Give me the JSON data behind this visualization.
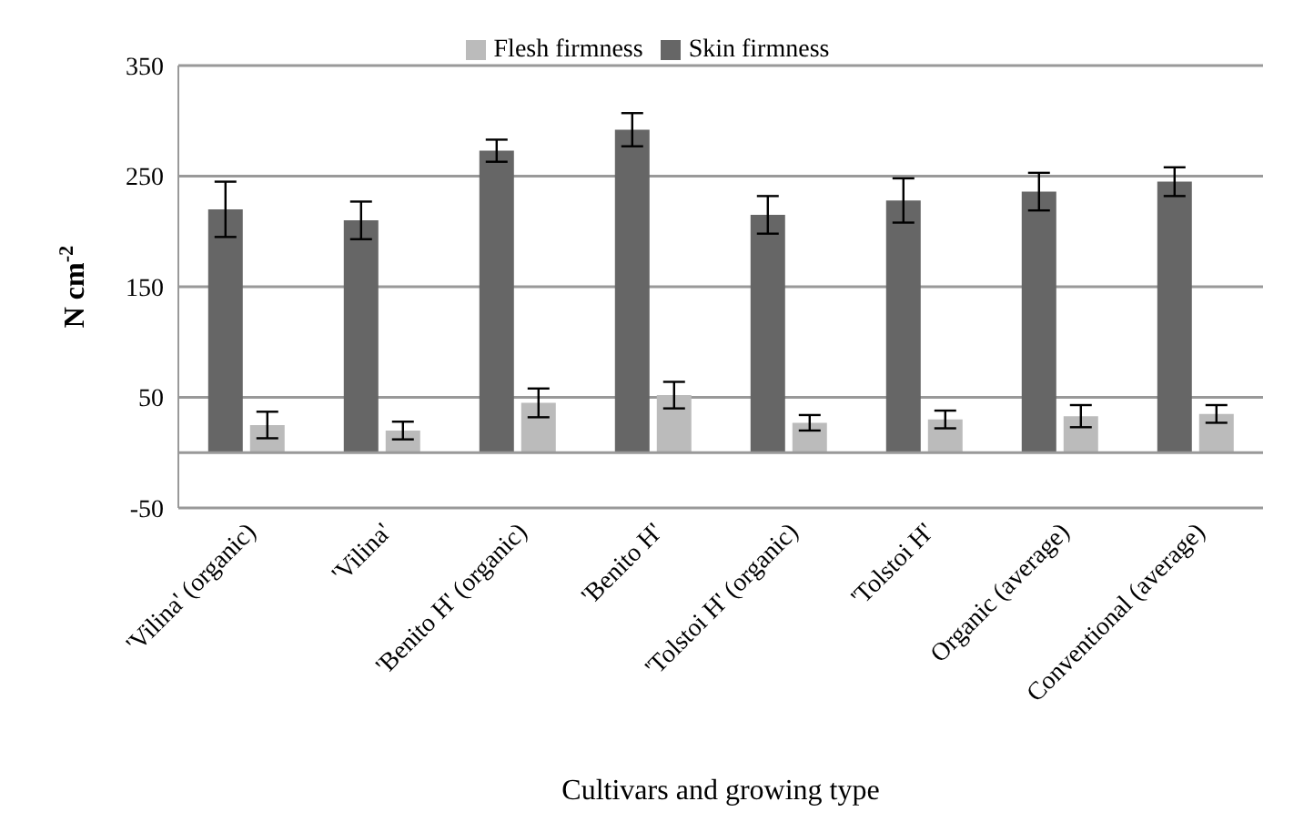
{
  "chart_data": {
    "type": "bar",
    "xlabel": "Cultivars and growing type",
    "ylabel": "N cm$^{-2}$",
    "categories": [
      "'Vilina' (organic)",
      "'Vilina'",
      "'Benito H' (organic)",
      "'Benito H'",
      "'Tolstoi H' (organic)",
      "'Tolstoi H'",
      "Organic (average)",
      "Conventional (average)"
    ],
    "series": [
      {
        "name": "Skin firmness",
        "color": "#666666",
        "values": [
          220,
          210,
          273,
          292,
          215,
          228,
          236,
          245
        ],
        "errors": [
          25,
          17,
          10,
          15,
          17,
          20,
          17,
          13
        ]
      },
      {
        "name": "Flesh firmness",
        "color": "#bbbbbb",
        "values": [
          25,
          20,
          45,
          52,
          27,
          30,
          33,
          35
        ],
        "errors": [
          12,
          8,
          13,
          12,
          7,
          8,
          10,
          8
        ]
      }
    ],
    "ylim": [
      -50,
      350
    ],
    "yticks": [
      -50,
      50,
      150,
      250,
      350
    ],
    "grid": "y",
    "legend": "top"
  }
}
